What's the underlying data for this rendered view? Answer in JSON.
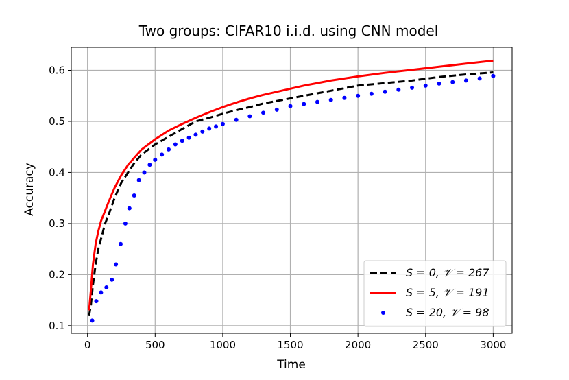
{
  "chart_data": {
    "type": "line",
    "title": "Two groups: CIFAR10 i.i.d. using CNN model",
    "xlabel": "Time",
    "ylabel": "Accuracy",
    "xlim": [
      -120,
      3140
    ],
    "ylim": [
      0.085,
      0.645
    ],
    "xticks": [
      0,
      500,
      1000,
      1500,
      2000,
      2500,
      3000
    ],
    "xtick_labels": [
      "0",
      "500",
      "1000",
      "1500",
      "2000",
      "2500",
      "3000"
    ],
    "yticks": [
      0.1,
      0.2,
      0.3,
      0.4,
      0.5,
      0.6
    ],
    "ytick_labels": [
      "0.1",
      "0.2",
      "0.3",
      "0.4",
      "0.5",
      "0.6"
    ],
    "grid": true,
    "legend_position": "lower-right",
    "series": [
      {
        "name": "S = 0, 𝒱 = 267",
        "style": "dashed",
        "color": "#000000",
        "points": [
          [
            12,
            0.12
          ],
          [
            25,
            0.14
          ],
          [
            40,
            0.18
          ],
          [
            60,
            0.22
          ],
          [
            80,
            0.25
          ],
          [
            100,
            0.27
          ],
          [
            130,
            0.3
          ],
          [
            160,
            0.32
          ],
          [
            200,
            0.35
          ],
          [
            250,
            0.38
          ],
          [
            300,
            0.4
          ],
          [
            350,
            0.42
          ],
          [
            400,
            0.435
          ],
          [
            450,
            0.445
          ],
          [
            500,
            0.455
          ],
          [
            600,
            0.47
          ],
          [
            700,
            0.485
          ],
          [
            800,
            0.5
          ],
          [
            900,
            0.507
          ],
          [
            1000,
            0.515
          ],
          [
            1100,
            0.522
          ],
          [
            1200,
            0.528
          ],
          [
            1300,
            0.535
          ],
          [
            1400,
            0.54
          ],
          [
            1500,
            0.545
          ],
          [
            1600,
            0.55
          ],
          [
            1700,
            0.555
          ],
          [
            1800,
            0.56
          ],
          [
            1900,
            0.565
          ],
          [
            2000,
            0.57
          ],
          [
            2200,
            0.575
          ],
          [
            2400,
            0.58
          ],
          [
            2600,
            0.587
          ],
          [
            2800,
            0.592
          ],
          [
            3000,
            0.596
          ]
        ]
      },
      {
        "name": "S = 5, 𝒱 = 191",
        "style": "solid",
        "color": "#ff0000",
        "points": [
          [
            12,
            0.13
          ],
          [
            25,
            0.17
          ],
          [
            40,
            0.22
          ],
          [
            60,
            0.26
          ],
          [
            80,
            0.285
          ],
          [
            100,
            0.305
          ],
          [
            130,
            0.325
          ],
          [
            160,
            0.345
          ],
          [
            200,
            0.37
          ],
          [
            250,
            0.395
          ],
          [
            300,
            0.415
          ],
          [
            350,
            0.43
          ],
          [
            400,
            0.445
          ],
          [
            450,
            0.455
          ],
          [
            500,
            0.465
          ],
          [
            600,
            0.482
          ],
          [
            700,
            0.495
          ],
          [
            800,
            0.507
          ],
          [
            900,
            0.518
          ],
          [
            1000,
            0.528
          ],
          [
            1100,
            0.537
          ],
          [
            1200,
            0.545
          ],
          [
            1300,
            0.552
          ],
          [
            1400,
            0.558
          ],
          [
            1500,
            0.564
          ],
          [
            1600,
            0.57
          ],
          [
            1700,
            0.575
          ],
          [
            1800,
            0.58
          ],
          [
            1900,
            0.584
          ],
          [
            2000,
            0.588
          ],
          [
            2200,
            0.595
          ],
          [
            2400,
            0.601
          ],
          [
            2600,
            0.607
          ],
          [
            2800,
            0.613
          ],
          [
            3000,
            0.619
          ]
        ]
      },
      {
        "name": "S = 20, 𝒱 = 98",
        "style": "dotted",
        "color": "#0000ff",
        "points": [
          [
            35,
            0.11
          ],
          [
            65,
            0.148
          ],
          [
            100,
            0.165
          ],
          [
            140,
            0.175
          ],
          [
            180,
            0.19
          ],
          [
            210,
            0.22
          ],
          [
            245,
            0.26
          ],
          [
            280,
            0.3
          ],
          [
            310,
            0.33
          ],
          [
            345,
            0.355
          ],
          [
            380,
            0.385
          ],
          [
            420,
            0.4
          ],
          [
            460,
            0.415
          ],
          [
            500,
            0.425
          ],
          [
            550,
            0.435
          ],
          [
            600,
            0.445
          ],
          [
            650,
            0.455
          ],
          [
            700,
            0.462
          ],
          [
            750,
            0.468
          ],
          [
            800,
            0.474
          ],
          [
            850,
            0.48
          ],
          [
            900,
            0.486
          ],
          [
            950,
            0.49
          ],
          [
            1000,
            0.495
          ],
          [
            1100,
            0.503
          ],
          [
            1200,
            0.51
          ],
          [
            1300,
            0.517
          ],
          [
            1400,
            0.523
          ],
          [
            1500,
            0.53
          ],
          [
            1600,
            0.534
          ],
          [
            1700,
            0.538
          ],
          [
            1800,
            0.542
          ],
          [
            1900,
            0.546
          ],
          [
            2000,
            0.55
          ],
          [
            2100,
            0.554
          ],
          [
            2200,
            0.558
          ],
          [
            2300,
            0.562
          ],
          [
            2400,
            0.566
          ],
          [
            2500,
            0.57
          ],
          [
            2600,
            0.574
          ],
          [
            2700,
            0.577
          ],
          [
            2800,
            0.58
          ],
          [
            2900,
            0.584
          ],
          [
            3000,
            0.589
          ]
        ]
      }
    ]
  }
}
